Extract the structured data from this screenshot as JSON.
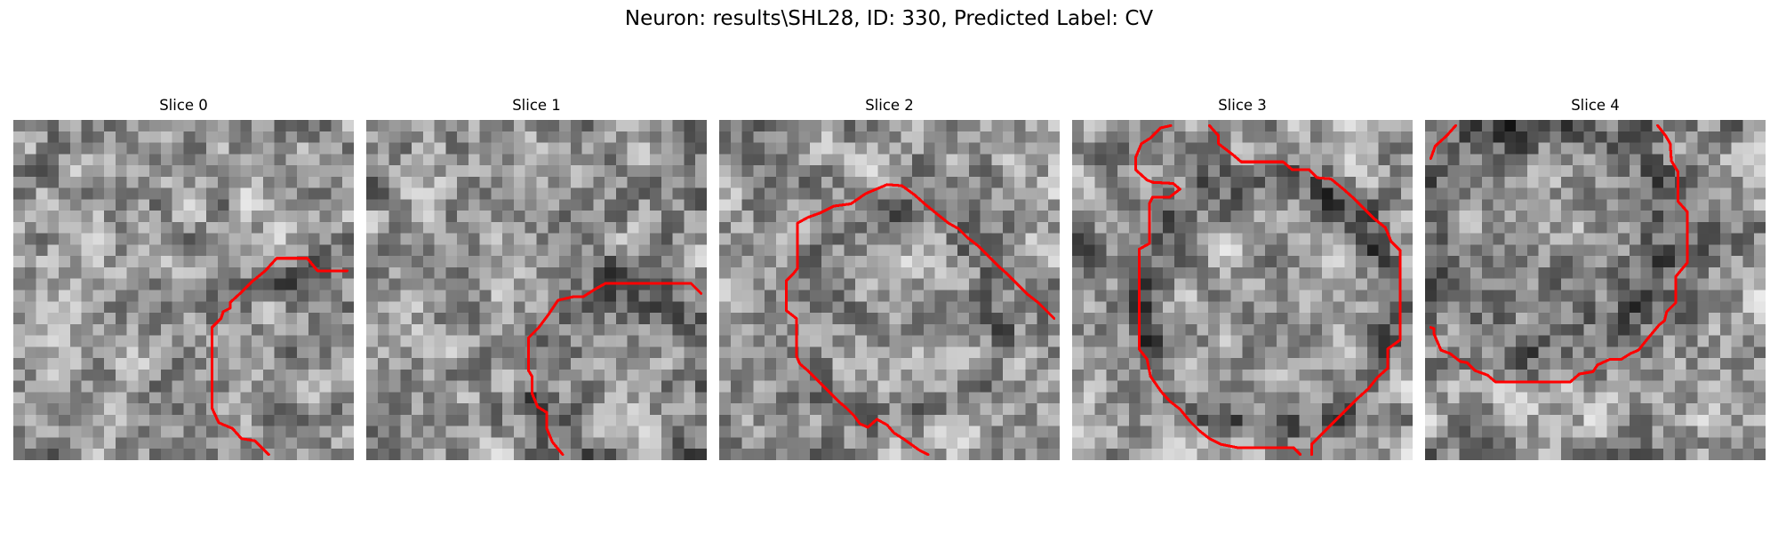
{
  "figure": {
    "title": "Neuron: results\\SHL28, ID: 330, Predicted Label: CV"
  },
  "overlay_color": "#ff0000",
  "panels": [
    {
      "title": "Slice 0",
      "seed": 11
    },
    {
      "title": "Slice 1",
      "seed": 23
    },
    {
      "title": "Slice 2",
      "seed": 37
    },
    {
      "title": "Slice 3",
      "seed": 51
    },
    {
      "title": "Slice 4",
      "seed": 67
    }
  ]
}
